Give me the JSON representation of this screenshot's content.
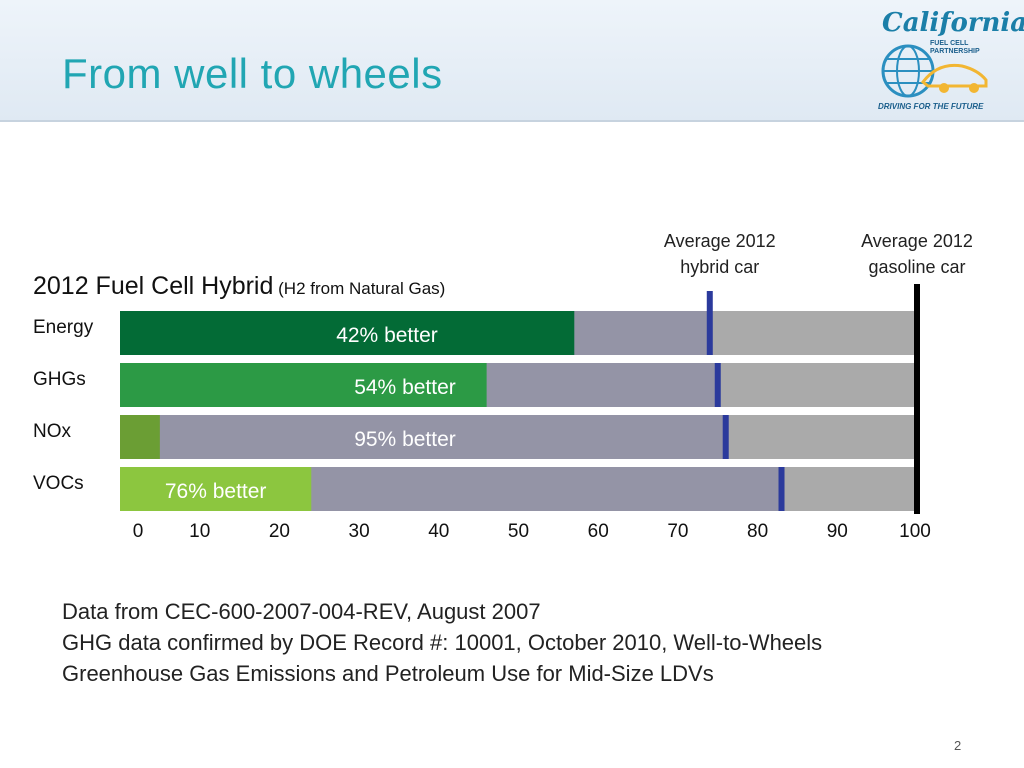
{
  "slide": {
    "title": "From well to wheels",
    "page_number": "2"
  },
  "logo": {
    "name": "California",
    "sub_line1": "FUEL CELL",
    "sub_line2": "PARTNERSHIP",
    "tagline": "DRIVING FOR THE FUTURE"
  },
  "chart_data": {
    "type": "bar",
    "orientation": "horizontal",
    "title": "2012 Fuel Cell Hybrid",
    "subtitle": "(H2 from Natural Gas)",
    "categories": [
      "Energy",
      "GHGs",
      "NOx",
      "VOCs"
    ],
    "fuel_cell_values": [
      57,
      46,
      5,
      24
    ],
    "hybrid_values": [
      74,
      75,
      76,
      83
    ],
    "gasoline_value": 100,
    "bar_labels": [
      "42% better",
      "54% better",
      "95% better",
      "76% better"
    ],
    "bar_colors": [
      "#036b36",
      "#2c9a45",
      "#6b9e34",
      "#8cc63f"
    ],
    "hybrid_segment_color": "#9494a6",
    "background_bar_color": "#aaaaaa",
    "hybrid_marker_color": "#2b3a9c",
    "gasoline_marker_color": "#000000",
    "markers": [
      {
        "line1": "Average 2012",
        "line2": "hybrid car"
      },
      {
        "line1": "Average 2012",
        "line2": "gasoline car"
      }
    ],
    "x_ticks": [
      0,
      10,
      20,
      30,
      40,
      50,
      60,
      70,
      80,
      90,
      100
    ],
    "xlim": [
      0,
      100
    ]
  },
  "notes": [
    "Data from CEC-600-2007-004-REV, August 2007",
    "GHG data confirmed by DOE Record #: 10001, October 2010, Well-to-Wheels",
    "Greenhouse Gas Emissions and Petroleum Use for Mid-Size LDVs"
  ]
}
